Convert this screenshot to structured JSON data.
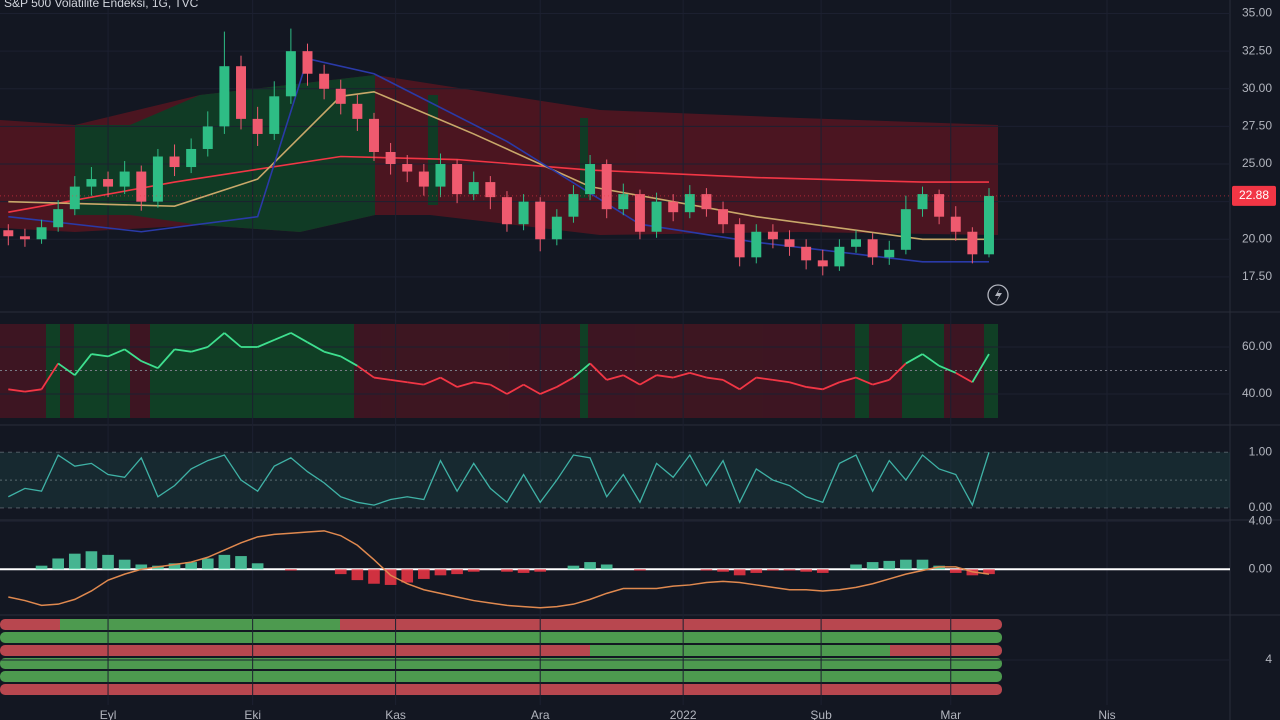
{
  "chart_data": [
    {
      "type": "candlestick",
      "title": "S&P 500 Volatilite Endeksi, 1G, TVC",
      "up_color": "#2ebd85",
      "down_color": "#ef5a6f",
      "open": [
        20.6,
        20.2,
        20.0,
        20.8,
        22.0,
        23.5,
        24.0,
        23.5,
        24.5,
        22.5,
        25.5,
        24.8,
        26.0,
        27.5,
        31.5,
        28.0,
        27.0,
        29.5,
        32.5,
        31.0,
        30.0,
        29.0,
        28.0,
        25.8,
        25.0,
        24.5,
        23.5,
        25.0,
        23.0,
        23.8,
        22.8,
        21.0,
        22.5,
        20.0,
        21.5,
        23.0,
        25.0,
        22.0,
        23.0,
        20.5,
        22.5,
        21.8,
        23.0,
        22.0,
        21.0,
        18.8,
        20.5,
        20.0,
        19.5,
        18.6,
        18.2,
        19.5,
        20.0,
        18.8,
        19.3,
        22.0,
        23.0,
        21.5,
        20.5,
        19.0
      ],
      "high": [
        21.0,
        20.7,
        21.3,
        22.6,
        24.2,
        24.8,
        24.5,
        25.2,
        24.9,
        26.0,
        26.3,
        26.7,
        28.5,
        33.8,
        32.2,
        28.8,
        30.5,
        34.0,
        33.0,
        31.6,
        30.6,
        29.6,
        28.4,
        26.4,
        25.6,
        25.0,
        25.7,
        25.3,
        24.5,
        24.2,
        23.2,
        23.0,
        22.8,
        22.0,
        23.6,
        25.6,
        25.3,
        23.7,
        23.3,
        23.1,
        23.0,
        23.6,
        23.4,
        22.5,
        21.4,
        21.0,
        21.0,
        20.6,
        20.0,
        19.3,
        20.0,
        20.6,
        20.4,
        19.9,
        22.9,
        23.5,
        23.3,
        22.2,
        20.8,
        23.4
      ],
      "low": [
        19.6,
        19.5,
        19.7,
        20.5,
        21.6,
        22.9,
        22.8,
        23.0,
        21.9,
        22.1,
        24.2,
        24.4,
        25.5,
        27.0,
        27.3,
        26.2,
        26.6,
        29.0,
        30.2,
        29.3,
        28.3,
        27.2,
        25.2,
        24.3,
        23.8,
        22.9,
        22.8,
        22.4,
        22.6,
        22.0,
        20.5,
        20.6,
        19.2,
        19.6,
        21.1,
        22.6,
        21.4,
        21.6,
        20.0,
        20.1,
        21.2,
        21.4,
        21.5,
        20.4,
        18.2,
        18.4,
        19.4,
        18.9,
        18.0,
        17.6,
        17.9,
        19.1,
        18.3,
        18.3,
        19.0,
        21.5,
        21.0,
        19.9,
        18.4,
        18.8
      ],
      "close": [
        20.2,
        20.0,
        20.8,
        22.0,
        23.5,
        24.0,
        23.5,
        24.5,
        22.5,
        25.5,
        24.8,
        26.0,
        27.5,
        31.5,
        28.0,
        27.0,
        29.5,
        32.5,
        31.0,
        30.0,
        29.0,
        28.0,
        25.8,
        25.0,
        24.5,
        23.5,
        25.0,
        23.0,
        23.8,
        22.8,
        21.0,
        22.5,
        20.0,
        21.5,
        23.0,
        25.0,
        22.0,
        23.0,
        20.5,
        22.5,
        21.8,
        23.0,
        22.0,
        21.0,
        18.8,
        20.5,
        20.0,
        19.5,
        18.6,
        18.2,
        19.5,
        20.0,
        18.8,
        19.3,
        22.0,
        23.0,
        21.5,
        20.5,
        19.0,
        22.88
      ],
      "last_price": 22.88,
      "overlays": [
        {
          "color": "#f23645",
          "x": [
            0,
            10,
            20,
            27,
            35,
            45,
            55,
            59
          ],
          "values": [
            21.8,
            23.8,
            25.5,
            25.3,
            24.6,
            24.1,
            23.8,
            23.8
          ]
        },
        {
          "color": "#c9a86a",
          "x": [
            0,
            10,
            15,
            20,
            22,
            28,
            35,
            45,
            55,
            59
          ],
          "values": [
            22.5,
            22.2,
            24.0,
            29.5,
            29.8,
            27.0,
            23.5,
            21.5,
            20.0,
            20.0
          ]
        },
        {
          "color": "#2a3aa8",
          "x": [
            0,
            8,
            15,
            18,
            22,
            30,
            38,
            45,
            55,
            59
          ],
          "values": [
            21.5,
            20.5,
            21.5,
            32.0,
            31.0,
            26.5,
            21.0,
            19.8,
            18.5,
            18.5
          ]
        }
      ],
      "ylim": [
        15.3,
        35.9
      ],
      "yticks": [
        {
          "value": 17.5,
          "label": "17.50"
        },
        {
          "value": 20,
          "label": "20.00"
        },
        {
          "value": 22.5,
          "label": "22.50"
        },
        {
          "value": 25,
          "label": "25.00"
        },
        {
          "value": 27.5,
          "label": "27.50"
        },
        {
          "value": 30,
          "label": "30.00"
        },
        {
          "value": 32.5,
          "label": "32.50"
        },
        {
          "value": 35,
          "label": "35.00"
        }
      ]
    },
    {
      "type": "line",
      "color_above": "#3ee08f",
      "color_below": "#f23645",
      "hline": 50,
      "values": [
        42,
        41,
        42,
        53,
        48,
        57,
        56,
        59,
        54,
        51,
        59,
        58,
        60,
        66,
        60,
        60,
        63,
        66,
        62,
        58,
        56,
        52,
        47,
        46,
        45,
        44,
        47,
        43,
        45,
        44,
        40,
        44,
        40,
        43,
        47,
        53,
        46,
        48,
        44,
        48,
        47,
        49,
        47,
        46,
        42,
        47,
        46,
        45,
        43,
        42,
        45,
        47,
        44,
        46,
        53,
        57,
        52,
        49,
        45,
        57
      ],
      "ylim": [
        30,
        70
      ],
      "yticks": [
        {
          "value": 40,
          "label": "40.00"
        },
        {
          "value": 60,
          "label": "60.00"
        }
      ]
    },
    {
      "type": "line",
      "color": "#3fb2a6",
      "hline": 0.5,
      "values": [
        0.2,
        0.35,
        0.3,
        0.95,
        0.75,
        0.8,
        0.6,
        0.55,
        0.9,
        0.2,
        0.4,
        0.7,
        0.85,
        0.95,
        0.5,
        0.3,
        0.75,
        0.9,
        0.65,
        0.45,
        0.2,
        0.1,
        0.05,
        0.15,
        0.2,
        0.15,
        0.85,
        0.3,
        0.8,
        0.35,
        0.1,
        0.6,
        0.1,
        0.5,
        0.95,
        0.9,
        0.2,
        0.6,
        0.1,
        0.8,
        0.55,
        0.95,
        0.4,
        0.85,
        0.1,
        0.7,
        0.5,
        0.4,
        0.2,
        0.1,
        0.8,
        0.95,
        0.3,
        0.85,
        0.5,
        0.95,
        0.7,
        0.6,
        0.05,
        1.0
      ],
      "ylim": [
        -0.2,
        1.4
      ],
      "yticks": [
        {
          "value": 0,
          "label": "0.00"
        },
        {
          "value": 1,
          "label": "1.00"
        }
      ]
    },
    {
      "type": "bar",
      "color_pos": "#4fd1a5",
      "color_neg": "#f23645",
      "hline": 0,
      "values": [
        0,
        0,
        0.3,
        0.9,
        1.3,
        1.5,
        1.2,
        0.8,
        0.4,
        0.3,
        0.5,
        0.6,
        0.9,
        1.2,
        1.1,
        0.5,
        0,
        -0.1,
        0,
        0,
        -0.4,
        -0.9,
        -1.2,
        -1.3,
        -1.1,
        -0.8,
        -0.5,
        -0.4,
        -0.2,
        0,
        -0.2,
        -0.3,
        -0.2,
        0,
        0.3,
        0.6,
        0.4,
        0,
        -0.1,
        0,
        0,
        0,
        -0.1,
        -0.2,
        -0.5,
        -0.3,
        -0.1,
        -0.1,
        -0.2,
        -0.3,
        0,
        0.4,
        0.6,
        0.7,
        0.8,
        0.8,
        0.3,
        -0.3,
        -0.5,
        -0.4
      ],
      "line": {
        "color": "#e0894f",
        "values": [
          -2.3,
          -2.6,
          -3.0,
          -2.9,
          -2.5,
          -1.8,
          -0.9,
          -0.4,
          0.0,
          0.2,
          0.4,
          0.6,
          1.0,
          1.6,
          2.2,
          2.7,
          2.9,
          3.0,
          3.1,
          3.2,
          2.8,
          2.0,
          0.8,
          -0.5,
          -1.2,
          -1.7,
          -2.0,
          -2.3,
          -2.6,
          -2.8,
          -3.0,
          -3.1,
          -3.2,
          -3.1,
          -2.9,
          -2.5,
          -2.0,
          -1.6,
          -1.6,
          -1.6,
          -1.4,
          -1.3,
          -1.1,
          -1.0,
          -1.1,
          -1.3,
          -1.5,
          -1.7,
          -1.7,
          -1.8,
          -1.7,
          -1.5,
          -1.2,
          -0.8,
          -0.4,
          -0.1,
          0.2,
          0.2,
          -0.2,
          -0.4
        ]
      },
      "ylim": [
        -3.8,
        4.1
      ],
      "yticks": [
        {
          "value": 0,
          "label": "0.00"
        },
        {
          "value": 4,
          "label": "4.00"
        }
      ]
    },
    {
      "type": "signal-grid",
      "ylim": [
        0,
        8
      ],
      "yticks": [
        4
      ],
      "xlim": [
        -0.5,
        73.5
      ],
      "xticks": [
        {
          "value": 6.0,
          "label": "Eyl"
        },
        {
          "value": 14.7,
          "label": "Eki"
        },
        {
          "value": 23.3,
          "label": "Kas"
        },
        {
          "value": 32.0,
          "label": "Ara"
        },
        {
          "value": 40.6,
          "label": "2022"
        },
        {
          "value": 48.9,
          "label": "Şub"
        },
        {
          "value": 56.7,
          "label": "Mar"
        },
        {
          "value": 66.1,
          "label": "Nis"
        }
      ]
    }
  ]
}
